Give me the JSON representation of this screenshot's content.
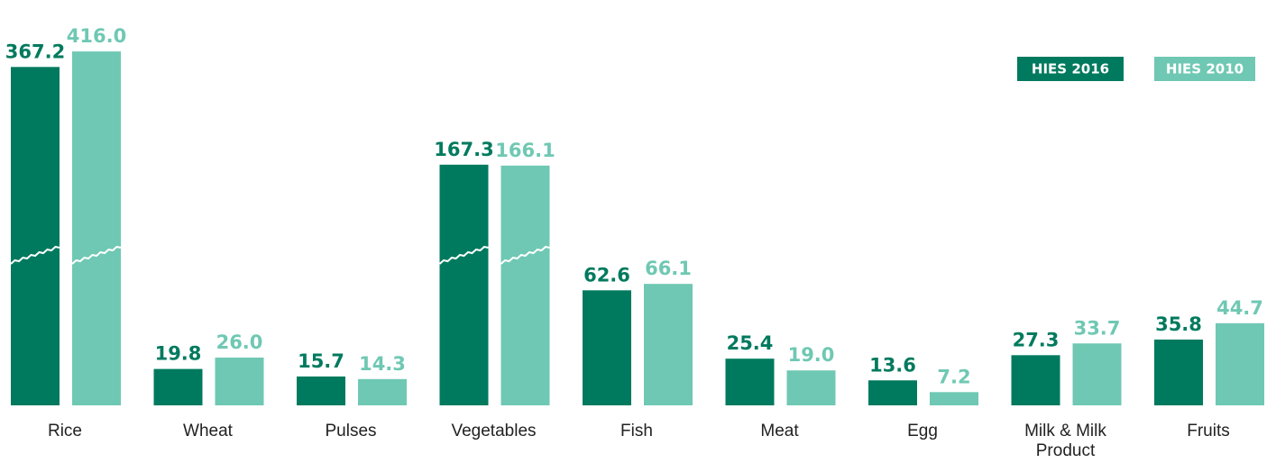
{
  "chart_data": {
    "type": "bar",
    "categories": [
      "Rice",
      "Wheat",
      "Pulses",
      "Vegetables",
      "Fish",
      "Meat",
      "Egg",
      "Milk & Milk Product",
      "Fruits"
    ],
    "series": [
      {
        "name": "HIES 2016",
        "color": "#007a5e",
        "values": [
          367.2,
          19.8,
          15.7,
          167.3,
          62.6,
          25.4,
          13.6,
          27.3,
          35.8
        ],
        "value_labels": [
          "367.2",
          "19.8",
          "15.7",
          "167.3",
          "62.6",
          "25.4",
          "13.6",
          "27.3",
          "35.8"
        ]
      },
      {
        "name": "HIES 2010",
        "color": "#6fc8b3",
        "values": [
          416.0,
          26.0,
          14.3,
          166.1,
          66.1,
          19.0,
          7.2,
          33.7,
          44.7
        ],
        "value_labels": [
          "416.0",
          "26.0",
          "14.3",
          "166.1",
          "66.1",
          "19.0",
          "7.2",
          "33.7",
          "44.7"
        ]
      }
    ],
    "legend": "top-right"
  }
}
